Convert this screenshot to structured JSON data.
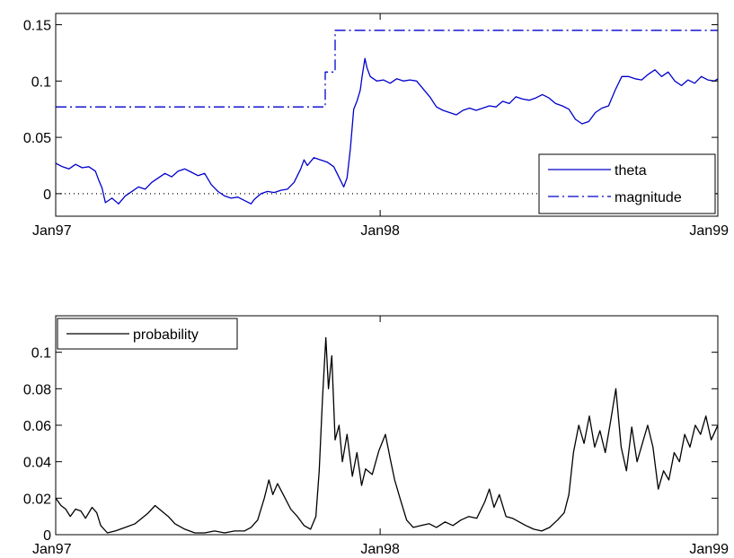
{
  "chart_data": [
    {
      "type": "line",
      "title": "",
      "xlabel": "",
      "ylabel": "",
      "x_ticks": [
        "Jan97",
        "Jan98",
        "Jan99"
      ],
      "ylim": [
        -0.02,
        0.16
      ],
      "y_ticks": [
        "0",
        "0.05",
        "0.1",
        "0.15"
      ],
      "grid": false,
      "legend_position": "bottom-right",
      "series": [
        {
          "name": "theta",
          "color": "#0000cc",
          "style": "solid",
          "points": [
            [
              0.0,
              0.027
            ],
            [
              0.01,
              0.024
            ],
            [
              0.02,
              0.022
            ],
            [
              0.03,
              0.026
            ],
            [
              0.04,
              0.023
            ],
            [
              0.05,
              0.024
            ],
            [
              0.06,
              0.02
            ],
            [
              0.065,
              0.012
            ],
            [
              0.07,
              0.005
            ],
            [
              0.075,
              -0.008
            ],
            [
              0.085,
              -0.004
            ],
            [
              0.095,
              -0.009
            ],
            [
              0.105,
              -0.002
            ],
            [
              0.115,
              0.002
            ],
            [
              0.125,
              0.006
            ],
            [
              0.135,
              0.004
            ],
            [
              0.145,
              0.01
            ],
            [
              0.155,
              0.014
            ],
            [
              0.165,
              0.018
            ],
            [
              0.175,
              0.015
            ],
            [
              0.185,
              0.02
            ],
            [
              0.195,
              0.022
            ],
            [
              0.205,
              0.019
            ],
            [
              0.215,
              0.016
            ],
            [
              0.225,
              0.018
            ],
            [
              0.235,
              0.008
            ],
            [
              0.245,
              0.002
            ],
            [
              0.255,
              -0.002
            ],
            [
              0.265,
              -0.004
            ],
            [
              0.275,
              -0.003
            ],
            [
              0.285,
              -0.006
            ],
            [
              0.295,
              -0.009
            ],
            [
              0.3,
              -0.005
            ],
            [
              0.31,
              0.0
            ],
            [
              0.32,
              0.002
            ],
            [
              0.33,
              0.001
            ],
            [
              0.34,
              0.003
            ],
            [
              0.35,
              0.004
            ],
            [
              0.36,
              0.01
            ],
            [
              0.37,
              0.022
            ],
            [
              0.375,
              0.03
            ],
            [
              0.38,
              0.025
            ],
            [
              0.39,
              0.032
            ],
            [
              0.4,
              0.03
            ],
            [
              0.41,
              0.028
            ],
            [
              0.42,
              0.024
            ],
            [
              0.425,
              0.018
            ],
            [
              0.43,
              0.012
            ],
            [
              0.435,
              0.006
            ],
            [
              0.44,
              0.014
            ],
            [
              0.445,
              0.04
            ],
            [
              0.45,
              0.075
            ],
            [
              0.455,
              0.082
            ],
            [
              0.46,
              0.092
            ],
            [
              0.463,
              0.105
            ],
            [
              0.467,
              0.12
            ],
            [
              0.47,
              0.112
            ],
            [
              0.475,
              0.104
            ],
            [
              0.485,
              0.1
            ],
            [
              0.495,
              0.101
            ],
            [
              0.505,
              0.098
            ],
            [
              0.515,
              0.102
            ],
            [
              0.525,
              0.1
            ],
            [
              0.535,
              0.101
            ],
            [
              0.545,
              0.1
            ],
            [
              0.555,
              0.093
            ],
            [
              0.565,
              0.086
            ],
            [
              0.575,
              0.077
            ],
            [
              0.585,
              0.074
            ],
            [
              0.595,
              0.072
            ],
            [
              0.605,
              0.07
            ],
            [
              0.615,
              0.074
            ],
            [
              0.625,
              0.076
            ],
            [
              0.635,
              0.074
            ],
            [
              0.645,
              0.076
            ],
            [
              0.655,
              0.078
            ],
            [
              0.665,
              0.077
            ],
            [
              0.675,
              0.082
            ],
            [
              0.685,
              0.08
            ],
            [
              0.695,
              0.086
            ],
            [
              0.705,
              0.084
            ],
            [
              0.715,
              0.083
            ],
            [
              0.725,
              0.085
            ],
            [
              0.735,
              0.088
            ],
            [
              0.745,
              0.085
            ],
            [
              0.755,
              0.08
            ],
            [
              0.765,
              0.078
            ],
            [
              0.775,
              0.075
            ],
            [
              0.785,
              0.066
            ],
            [
              0.795,
              0.062
            ],
            [
              0.805,
              0.064
            ],
            [
              0.815,
              0.072
            ],
            [
              0.825,
              0.076
            ],
            [
              0.835,
              0.078
            ],
            [
              0.845,
              0.092
            ],
            [
              0.855,
              0.104
            ],
            [
              0.865,
              0.104
            ],
            [
              0.875,
              0.102
            ],
            [
              0.885,
              0.101
            ],
            [
              0.895,
              0.106
            ],
            [
              0.905,
              0.11
            ],
            [
              0.915,
              0.104
            ],
            [
              0.925,
              0.108
            ],
            [
              0.935,
              0.1
            ],
            [
              0.945,
              0.096
            ],
            [
              0.955,
              0.101
            ],
            [
              0.965,
              0.098
            ],
            [
              0.975,
              0.104
            ],
            [
              0.985,
              0.101
            ],
            [
              0.995,
              0.1
            ],
            [
              1.0,
              0.102
            ]
          ]
        },
        {
          "name": "magnitude",
          "color": "#0000cc",
          "style": "dashdot",
          "points": [
            [
              0.0,
              0.077
            ],
            [
              0.407,
              0.077
            ],
            [
              0.407,
              0.108
            ],
            [
              0.422,
              0.108
            ],
            [
              0.422,
              0.145
            ],
            [
              1.0,
              0.145
            ]
          ]
        }
      ],
      "reference_line": {
        "y": 0,
        "style": "dotted",
        "color": "#000000"
      }
    },
    {
      "type": "line",
      "title": "",
      "xlabel": "",
      "ylabel": "",
      "x_ticks": [
        "Jan97",
        "Jan98",
        "Jan99"
      ],
      "ylim": [
        0,
        0.12
      ],
      "y_ticks": [
        "0",
        "0.02",
        "0.04",
        "0.06",
        "0.08",
        "0.1"
      ],
      "grid": false,
      "legend_position": "top-left",
      "series": [
        {
          "name": "probability",
          "color": "#000000",
          "style": "solid",
          "points": [
            [
              0.0,
              0.02
            ],
            [
              0.008,
              0.016
            ],
            [
              0.015,
              0.014
            ],
            [
              0.022,
              0.01
            ],
            [
              0.03,
              0.014
            ],
            [
              0.038,
              0.013
            ],
            [
              0.045,
              0.009
            ],
            [
              0.055,
              0.015
            ],
            [
              0.062,
              0.012
            ],
            [
              0.068,
              0.005
            ],
            [
              0.078,
              0.001
            ],
            [
              0.09,
              0.002
            ],
            [
              0.105,
              0.004
            ],
            [
              0.12,
              0.006
            ],
            [
              0.13,
              0.009
            ],
            [
              0.14,
              0.012
            ],
            [
              0.15,
              0.016
            ],
            [
              0.16,
              0.013
            ],
            [
              0.17,
              0.01
            ],
            [
              0.18,
              0.006
            ],
            [
              0.195,
              0.003
            ],
            [
              0.21,
              0.001
            ],
            [
              0.225,
              0.001
            ],
            [
              0.24,
              0.002
            ],
            [
              0.255,
              0.001
            ],
            [
              0.27,
              0.002
            ],
            [
              0.285,
              0.002
            ],
            [
              0.295,
              0.004
            ],
            [
              0.305,
              0.008
            ],
            [
              0.315,
              0.02
            ],
            [
              0.322,
              0.03
            ],
            [
              0.328,
              0.022
            ],
            [
              0.335,
              0.028
            ],
            [
              0.345,
              0.021
            ],
            [
              0.355,
              0.014
            ],
            [
              0.365,
              0.01
            ],
            [
              0.375,
              0.005
            ],
            [
              0.385,
              0.003
            ],
            [
              0.393,
              0.01
            ],
            [
              0.398,
              0.035
            ],
            [
              0.403,
              0.075
            ],
            [
              0.408,
              0.108
            ],
            [
              0.412,
              0.08
            ],
            [
              0.417,
              0.098
            ],
            [
              0.422,
              0.052
            ],
            [
              0.428,
              0.06
            ],
            [
              0.433,
              0.04
            ],
            [
              0.44,
              0.055
            ],
            [
              0.448,
              0.032
            ],
            [
              0.455,
              0.045
            ],
            [
              0.462,
              0.027
            ],
            [
              0.468,
              0.036
            ],
            [
              0.478,
              0.033
            ],
            [
              0.488,
              0.046
            ],
            [
              0.498,
              0.055
            ],
            [
              0.505,
              0.042
            ],
            [
              0.512,
              0.03
            ],
            [
              0.52,
              0.02
            ],
            [
              0.53,
              0.008
            ],
            [
              0.54,
              0.004
            ],
            [
              0.552,
              0.005
            ],
            [
              0.564,
              0.006
            ],
            [
              0.575,
              0.004
            ],
            [
              0.588,
              0.007
            ],
            [
              0.6,
              0.005
            ],
            [
              0.612,
              0.008
            ],
            [
              0.624,
              0.01
            ],
            [
              0.636,
              0.009
            ],
            [
              0.648,
              0.018
            ],
            [
              0.655,
              0.025
            ],
            [
              0.662,
              0.015
            ],
            [
              0.67,
              0.022
            ],
            [
              0.68,
              0.01
            ],
            [
              0.69,
              0.009
            ],
            [
              0.7,
              0.007
            ],
            [
              0.71,
              0.005
            ],
            [
              0.722,
              0.003
            ],
            [
              0.734,
              0.002
            ],
            [
              0.746,
              0.004
            ],
            [
              0.758,
              0.008
            ],
            [
              0.768,
              0.012
            ],
            [
              0.775,
              0.022
            ],
            [
              0.782,
              0.045
            ],
            [
              0.79,
              0.06
            ],
            [
              0.798,
              0.05
            ],
            [
              0.806,
              0.065
            ],
            [
              0.814,
              0.048
            ],
            [
              0.822,
              0.057
            ],
            [
              0.83,
              0.045
            ],
            [
              0.838,
              0.062
            ],
            [
              0.846,
              0.08
            ],
            [
              0.854,
              0.048
            ],
            [
              0.862,
              0.035
            ],
            [
              0.87,
              0.059
            ],
            [
              0.878,
              0.04
            ],
            [
              0.886,
              0.05
            ],
            [
              0.894,
              0.06
            ],
            [
              0.902,
              0.048
            ],
            [
              0.91,
              0.025
            ],
            [
              0.918,
              0.035
            ],
            [
              0.926,
              0.03
            ],
            [
              0.934,
              0.045
            ],
            [
              0.942,
              0.04
            ],
            [
              0.95,
              0.055
            ],
            [
              0.958,
              0.048
            ],
            [
              0.966,
              0.06
            ],
            [
              0.974,
              0.055
            ],
            [
              0.982,
              0.065
            ],
            [
              0.99,
              0.052
            ],
            [
              1.0,
              0.06
            ]
          ]
        }
      ]
    }
  ]
}
